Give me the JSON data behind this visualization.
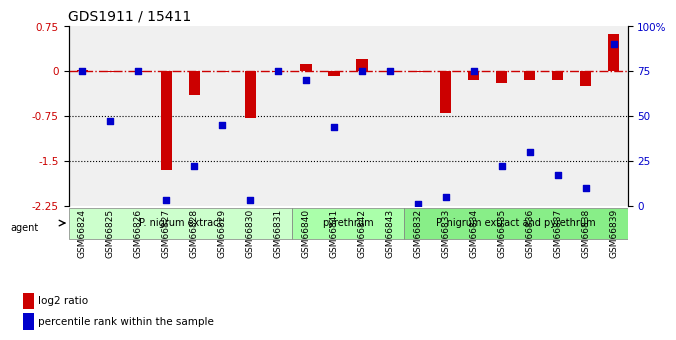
{
  "title": "GDS1911 / 15411",
  "samples": [
    "GSM66824",
    "GSM66825",
    "GSM66826",
    "GSM66827",
    "GSM66828",
    "GSM66829",
    "GSM66830",
    "GSM66831",
    "GSM66840",
    "GSM66841",
    "GSM66842",
    "GSM66843",
    "GSM66832",
    "GSM66833",
    "GSM66834",
    "GSM66835",
    "GSM66836",
    "GSM66837",
    "GSM66838",
    "GSM66839"
  ],
  "log2_ratio": [
    0.02,
    -0.02,
    -0.02,
    -1.65,
    -0.4,
    -0.02,
    -0.78,
    -0.02,
    0.12,
    -0.08,
    0.2,
    -0.02,
    -0.02,
    -0.7,
    -0.15,
    -0.2,
    -0.15,
    -0.15,
    -0.25,
    0.62
  ],
  "percentile": [
    75,
    47,
    75,
    3,
    22,
    45,
    3,
    75,
    70,
    44,
    75,
    75,
    1,
    5,
    75,
    22,
    30,
    17,
    10,
    90
  ],
  "groups": [
    {
      "label": "P. nigrum extract",
      "start": 0,
      "end": 8,
      "color": "#ccffcc"
    },
    {
      "label": "pyrethrum",
      "start": 8,
      "end": 12,
      "color": "#aaffaa"
    },
    {
      "label": "P. nigrum extract and pyrethrum",
      "start": 12,
      "end": 20,
      "color": "#88ee88"
    }
  ],
  "ylim_left": [
    -2.25,
    0.75
  ],
  "ylim_right": [
    0,
    100
  ],
  "bar_color": "#cc0000",
  "dot_color": "#0000cc",
  "hline_color": "#cc0000",
  "hline_style": "-.",
  "dotline_color": "black",
  "dotline_style": ":",
  "bg_color": "#f0f0f0",
  "yticks_left": [
    0.75,
    0.0,
    -0.75,
    -1.5,
    -2.25
  ],
  "yticks_right": [
    100,
    75,
    50,
    25,
    0
  ],
  "ytick_labels_right": [
    "100%",
    "75",
    "50",
    "25",
    "0"
  ]
}
